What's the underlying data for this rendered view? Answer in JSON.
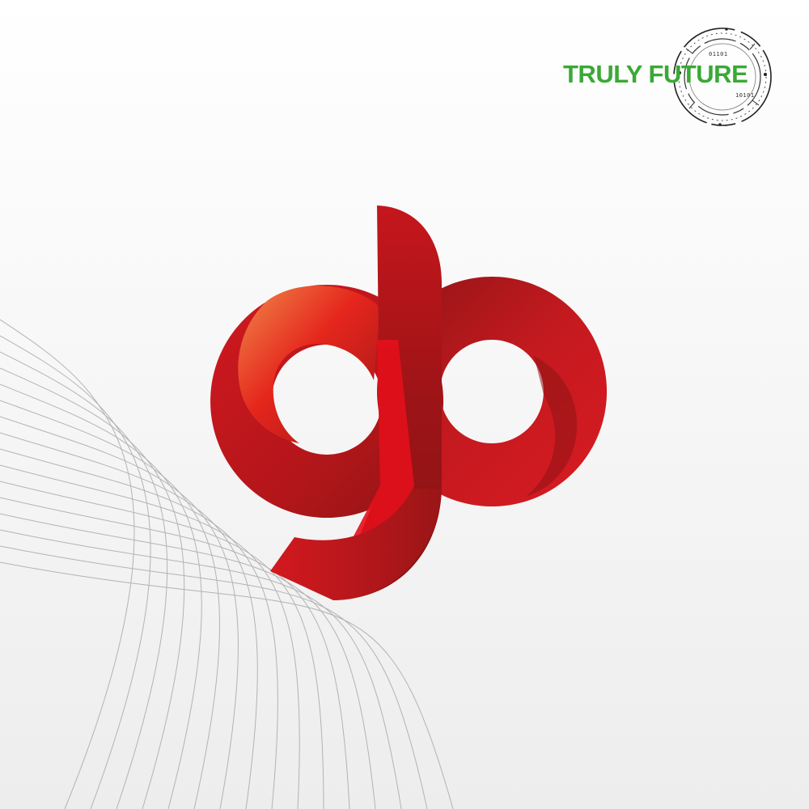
{
  "brand": {
    "name": "TRULY FUTURE",
    "name_color": "#3aa935",
    "badge_bits_top": "01101",
    "badge_bits_bottom": "10101"
  },
  "logo": {
    "monogram": "gb",
    "colors": {
      "red": "#d11820",
      "dark_red": "#8e1416",
      "bright_red": "#e30f1b",
      "orange": "#f08a4b"
    }
  },
  "background": {
    "style": "white-to-light-gray gradient with thin curved line pattern bottom-left",
    "line_color": "#a8a8a8"
  }
}
